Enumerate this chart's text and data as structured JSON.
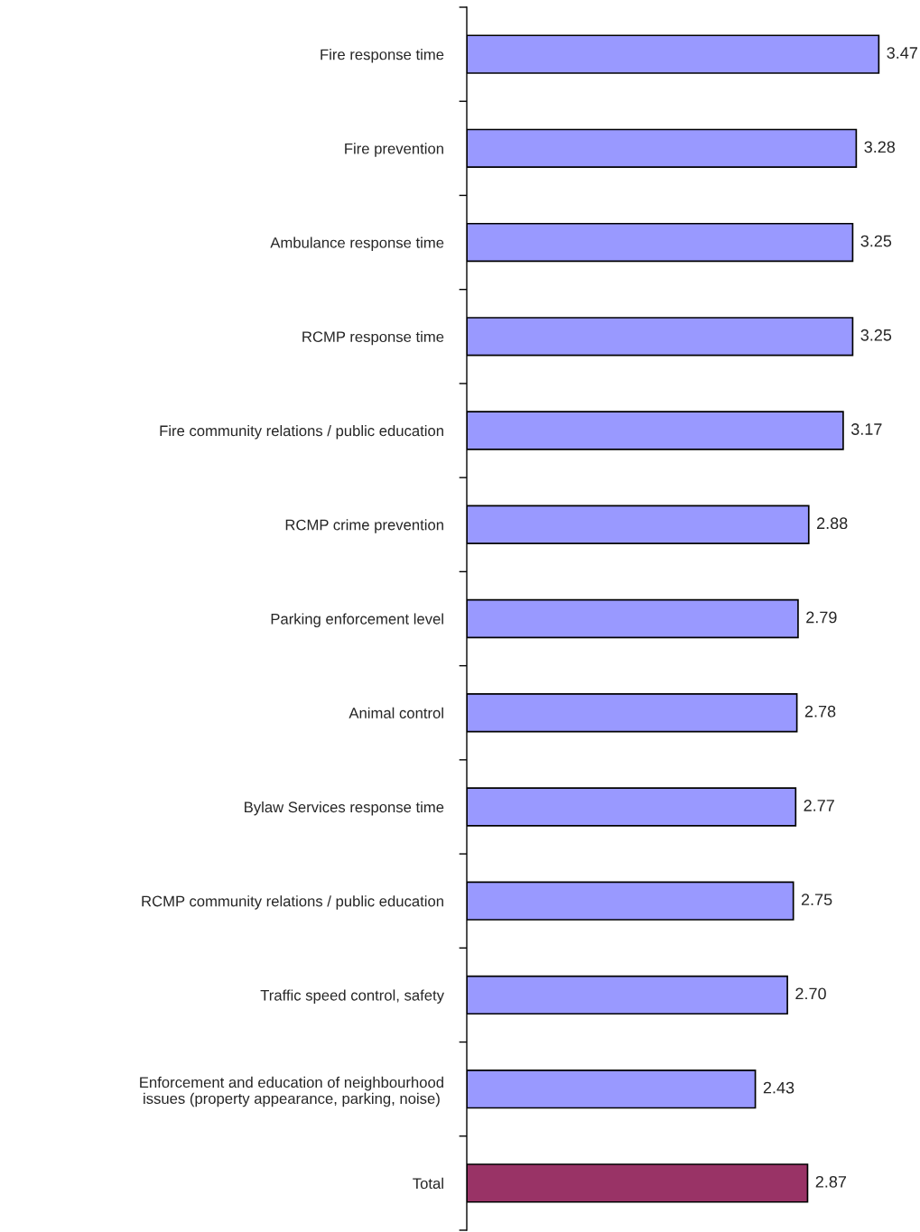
{
  "chart_data": {
    "type": "bar",
    "orientation": "horizontal",
    "categories": [
      "Fire response time",
      "Fire prevention",
      "Ambulance response time",
      "RCMP response time",
      "Fire community relations / public education",
      "RCMP crime prevention",
      "Parking enforcement level",
      "Animal control",
      "Bylaw Services response time",
      "RCMP community relations / public education",
      "Traffic speed control, safety",
      "Enforcement and education of neighbourhood\nissues (property appearance, parking, noise)",
      "Total"
    ],
    "values": [
      3.47,
      3.28,
      3.25,
      3.25,
      3.17,
      2.88,
      2.79,
      2.78,
      2.77,
      2.75,
      2.7,
      2.43,
      2.87
    ],
    "value_labels": [
      "3.47",
      "3.28",
      "3.25",
      "3.25",
      "3.17",
      "2.88",
      "2.79",
      "2.78",
      "2.77",
      "2.75",
      "2.70",
      "2.43",
      "2.87"
    ],
    "colors": [
      "#9999ff",
      "#9999ff",
      "#9999ff",
      "#9999ff",
      "#9999ff",
      "#9999ff",
      "#9999ff",
      "#9999ff",
      "#9999ff",
      "#9999ff",
      "#9999ff",
      "#9999ff",
      "#993366"
    ],
    "tick_labels": "y",
    "grid": false,
    "legend": false
  }
}
